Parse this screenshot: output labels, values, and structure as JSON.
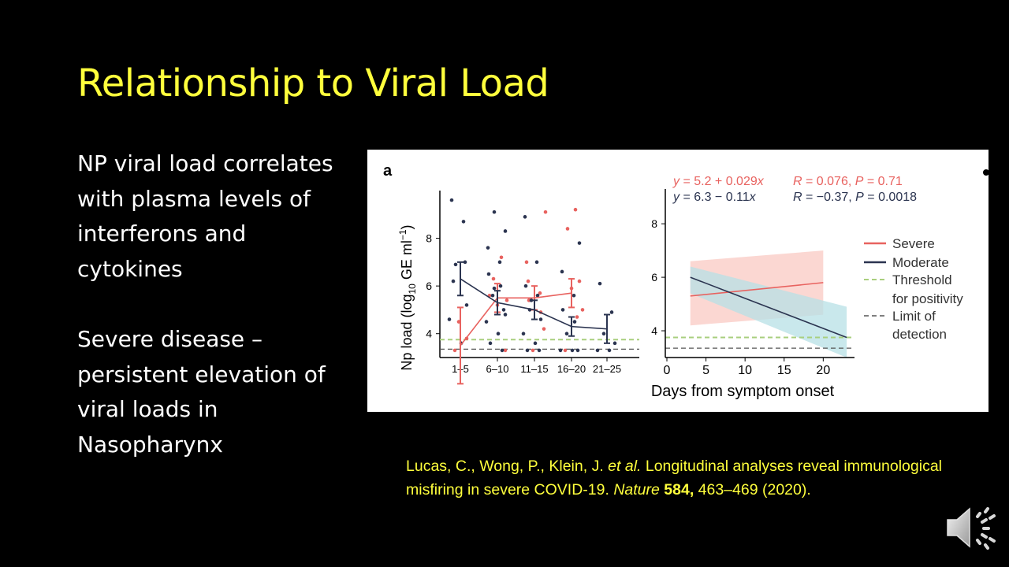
{
  "title": "Relationship to Viral Load",
  "bullets": [
    [
      "NP viral load correlates",
      "with plasma levels of",
      "interferons and",
      "cytokines"
    ],
    [
      "Severe disease –",
      "persistent elevation of",
      "viral loads in",
      "Nasopharynx"
    ]
  ],
  "citation": {
    "authors": "Lucas, C., Wong, P., Klein, J. ",
    "et_al": "et al.",
    "title_text": " Longitudinal analyses reveal immunological misfiring in severe COVID-19. ",
    "journal": "Nature",
    "volume": "584,",
    "pages": " 463–469 (2020)."
  },
  "figure": {
    "panel_label": "a",
    "y_label_pre": "Np load (log",
    "y_label_sub": "10",
    "y_label_post": " GE ml",
    "y_label_sup": "−1",
    "y_label_close": ")",
    "x_label": "Days from symptom onset",
    "colors": {
      "severe": "#e8625f",
      "moderate": "#2b3450",
      "threshold": "#a9cf7e",
      "limit": "#555555",
      "severe_band": "#f9c9c3",
      "moderate_band": "#b7e0e6"
    },
    "legend": {
      "severe": "Severe",
      "moderate": "Moderate",
      "threshold_1": "Threshold",
      "threshold_2": "for positivity",
      "limit_1": "Limit of",
      "limit_2": "detection"
    },
    "regression": {
      "severe": {
        "eq_y": "y",
        "eq_body": " = 5.2 + 0.029",
        "eq_x": "x",
        "r": "R",
        "r_val": " = 0.076, ",
        "p": "P",
        "p_val": " = 0.71"
      },
      "moderate": {
        "eq_y": "y",
        "eq_body": " = 6.3 − 0.11",
        "eq_x": "x",
        "r": "R",
        "r_val": " = −0.37, ",
        "p": "P",
        "p_val": " = 0.0018"
      }
    }
  },
  "chart_data": [
    {
      "type": "scatter",
      "categories": [
        "1–5",
        "6–10",
        "11–15",
        "16–20",
        "21–25"
      ],
      "xlabel": "Days from symptom onset",
      "ylabel": "Np load (log10 GE ml−1)",
      "yticks": [
        4,
        6,
        8
      ],
      "ylim": [
        3,
        10
      ],
      "series": [
        {
          "name": "Severe",
          "means": [
            3.5,
            5.5,
            5.5,
            5.7,
            null
          ],
          "err": [
            1.6,
            0.6,
            0.5,
            0.6,
            null
          ],
          "points": [
            [
              0,
              3.3
            ],
            [
              0,
              3.8
            ],
            [
              0,
              4.5
            ],
            [
              1,
              5.4
            ],
            [
              1,
              5.6
            ],
            [
              1,
              7.2
            ],
            [
              1,
              6.3
            ],
            [
              1,
              3.3
            ],
            [
              1,
              5.2
            ],
            [
              2,
              9.1
            ],
            [
              2,
              6.2
            ],
            [
              2,
              5.7
            ],
            [
              2,
              5.4
            ],
            [
              2,
              4.9
            ],
            [
              2,
              3.3
            ],
            [
              2,
              4.2
            ],
            [
              2,
              7.0
            ],
            [
              3,
              9.2
            ],
            [
              3,
              8.4
            ],
            [
              3,
              6.2
            ],
            [
              3,
              5.9
            ],
            [
              3,
              5.0
            ],
            [
              3,
              3.3
            ],
            [
              3,
              4.7
            ]
          ]
        },
        {
          "name": "Moderate",
          "means": [
            6.3,
            5.3,
            5.0,
            4.3,
            4.2
          ],
          "err": [
            0.7,
            0.5,
            0.4,
            0.4,
            0.6
          ],
          "points": [
            [
              0,
              9.6
            ],
            [
              0,
              8.7
            ],
            [
              0,
              6.9
            ],
            [
              0,
              5.2
            ],
            [
              0,
              4.6
            ],
            [
              0,
              3.6
            ],
            [
              0,
              6.2
            ],
            [
              0,
              7.0
            ],
            [
              1,
              9.1
            ],
            [
              1,
              8.3
            ],
            [
              1,
              7.6
            ],
            [
              1,
              7.0
            ],
            [
              1,
              6.5
            ],
            [
              1,
              6.0
            ],
            [
              1,
              5.6
            ],
            [
              1,
              5.0
            ],
            [
              1,
              4.5
            ],
            [
              1,
              4.0
            ],
            [
              1,
              3.6
            ],
            [
              1,
              3.3
            ],
            [
              1,
              5.9
            ],
            [
              1,
              4.8
            ],
            [
              2,
              8.9
            ],
            [
              2,
              7.0
            ],
            [
              2,
              6.0
            ],
            [
              2,
              5.6
            ],
            [
              2,
              5.0
            ],
            [
              2,
              4.6
            ],
            [
              2,
              4.0
            ],
            [
              2,
              3.6
            ],
            [
              2,
              3.3
            ],
            [
              2,
              3.3
            ],
            [
              2,
              5.4
            ],
            [
              3,
              7.8
            ],
            [
              3,
              6.6
            ],
            [
              3,
              5.6
            ],
            [
              3,
              5.0
            ],
            [
              3,
              4.5
            ],
            [
              3,
              4.0
            ],
            [
              3,
              3.3
            ],
            [
              3,
              3.3
            ],
            [
              3,
              3.3
            ],
            [
              4,
              6.1
            ],
            [
              4,
              4.9
            ],
            [
              4,
              4.0
            ],
            [
              4,
              3.6
            ],
            [
              4,
              3.3
            ],
            [
              4,
              3.3
            ]
          ]
        }
      ],
      "threshold": 3.75,
      "limit_of_detection": 3.35
    },
    {
      "type": "line",
      "xticks": [
        0,
        5,
        10,
        15,
        20
      ],
      "yticks": [
        4,
        6,
        8
      ],
      "xlim": [
        0,
        24
      ],
      "ylim": [
        3,
        9.3
      ],
      "series": [
        {
          "name": "Severe",
          "x": [
            3,
            20
          ],
          "y": [
            5.3,
            5.8
          ],
          "ci_lower": [
            4.2,
            4.6
          ],
          "ci_upper": [
            6.6,
            7.0
          ]
        },
        {
          "name": "Moderate",
          "x": [
            3,
            23
          ],
          "y": [
            6.0,
            3.75
          ],
          "ci_lower": [
            5.4,
            3.0
          ],
          "ci_upper": [
            6.4,
            4.9
          ]
        }
      ],
      "threshold": 3.75,
      "limit_of_detection": 3.35
    }
  ]
}
